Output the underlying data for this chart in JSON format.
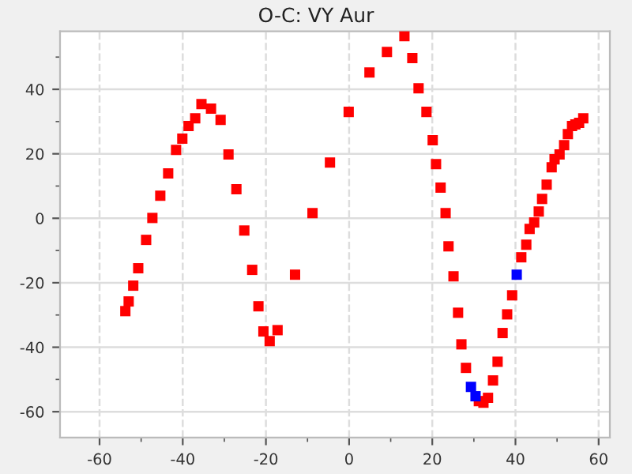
{
  "chart_data": {
    "type": "scatter",
    "title": "O-C: VY Aur",
    "marker": "square",
    "grid": true,
    "xlim": [
      -69.5,
      62.7
    ],
    "ylim": [
      -68,
      58
    ],
    "xticks": [
      -60,
      -40,
      -20,
      0,
      20,
      40,
      60
    ],
    "yticks": [
      -60,
      -40,
      -20,
      0,
      20,
      40
    ],
    "series": [
      {
        "color": "#ff0000",
        "x": [
          -53.8,
          -53.0,
          -51.9,
          -50.7,
          -48.8,
          -47.3,
          -45.4,
          -43.5,
          -41.6,
          -40.1,
          -38.6,
          -37.0,
          -35.5,
          -33.2,
          -30.9,
          -29.0,
          -27.1,
          -25.2,
          -23.3,
          -21.8,
          -20.6,
          -19.1,
          -17.2,
          -13.0,
          -8.8,
          -4.6,
          -0.1,
          4.9,
          9.1,
          13.3,
          15.2,
          16.7,
          18.6,
          20.1,
          20.9,
          22.0,
          23.2,
          23.9,
          25.1,
          26.2,
          27.0,
          28.1,
          31.2,
          32.3,
          33.4,
          34.6,
          35.7,
          36.9,
          38.0,
          39.2,
          41.4,
          42.6,
          43.4,
          44.5,
          45.6,
          46.4,
          47.5,
          48.7,
          49.4,
          50.6,
          51.7,
          52.6,
          53.6,
          54.4,
          55.3,
          56.3
        ],
        "values": [
          -28.8,
          -25.8,
          -20.9,
          -15.5,
          -6.7,
          0.1,
          7.0,
          13.9,
          21.2,
          24.7,
          28.6,
          31.0,
          35.4,
          34.0,
          30.5,
          19.8,
          9.0,
          -3.8,
          -16.0,
          -27.3,
          -35.1,
          -38.1,
          -34.7,
          -17.5,
          1.6,
          17.3,
          33.0,
          45.2,
          51.6,
          56.5,
          49.7,
          40.3,
          33.0,
          24.2,
          16.8,
          9.5,
          1.6,
          -8.7,
          -18.0,
          -29.3,
          -39.1,
          -46.4,
          -56.7,
          -57.2,
          -55.7,
          -50.3,
          -44.5,
          -35.6,
          -29.8,
          -23.9,
          -12.1,
          -8.2,
          -3.3,
          -1.3,
          2.1,
          6.0,
          10.4,
          15.8,
          18.3,
          19.8,
          22.7,
          26.1,
          28.6,
          29.1,
          29.6,
          31.0
        ]
      },
      {
        "color": "#0000ff",
        "x": [
          29.3,
          30.4,
          40.3
        ],
        "values": [
          -52.3,
          -55.2,
          -17.5
        ]
      }
    ]
  }
}
